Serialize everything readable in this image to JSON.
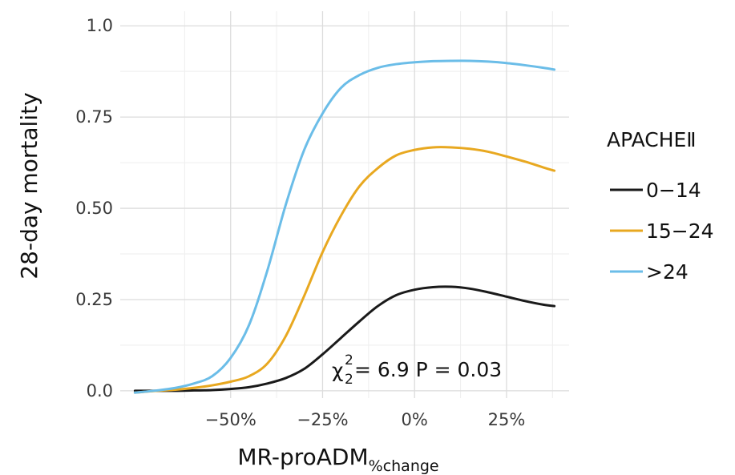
{
  "chart_data": {
    "type": "line",
    "xlabel_main": "MR-proADM",
    "xlabel_sub": "%change",
    "ylabel": "28-day mortality",
    "x_ticks": [
      {
        "value": -50,
        "label": "−50%"
      },
      {
        "value": -25,
        "label": "−25%"
      },
      {
        "value": 0,
        "label": "0%"
      },
      {
        "value": 25,
        "label": "25%"
      }
    ],
    "y_ticks": [
      {
        "value": 0.0,
        "label": "0.0"
      },
      {
        "value": 0.25,
        "label": "0.25"
      },
      {
        "value": 0.5,
        "label": "0.50"
      },
      {
        "value": 0.75,
        "label": "0.75"
      },
      {
        "value": 1.0,
        "label": "1.0"
      }
    ],
    "xlim": [
      -80,
      42
    ],
    "ylim": [
      -0.02,
      1.04
    ],
    "grid": true,
    "legend": {
      "title": "APACHEⅡ",
      "placement": "right"
    },
    "annotation": {
      "chi": "χ",
      "sup": "2",
      "sub": "2",
      "rest": "= 6.9   P = 0.03"
    },
    "series": [
      {
        "name": "0−14",
        "color": "#1a1a1a",
        "x": [
          -76,
          -70,
          -65,
          -60,
          -55,
          -50,
          -45,
          -40,
          -35,
          -30,
          -25,
          -20,
          -15,
          -10,
          -5,
          0,
          5,
          10,
          15,
          20,
          25,
          30,
          35,
          38
        ],
        "y": [
          0.0,
          0.0,
          0.0,
          0.001,
          0.002,
          0.005,
          0.01,
          0.02,
          0.035,
          0.06,
          0.1,
          0.145,
          0.19,
          0.232,
          0.262,
          0.277,
          0.284,
          0.285,
          0.28,
          0.27,
          0.258,
          0.246,
          0.236,
          0.232
        ]
      },
      {
        "name": "15−24",
        "color": "#e8a820",
        "x": [
          -76,
          -70,
          -65,
          -60,
          -55,
          -50,
          -45,
          -40,
          -35,
          -30,
          -25,
          -20,
          -15,
          -10,
          -5,
          0,
          5,
          10,
          15,
          20,
          25,
          30,
          35,
          38
        ],
        "y": [
          -0.005,
          0.0,
          0.003,
          0.008,
          0.015,
          0.025,
          0.04,
          0.075,
          0.15,
          0.26,
          0.38,
          0.48,
          0.56,
          0.61,
          0.645,
          0.66,
          0.667,
          0.667,
          0.663,
          0.655,
          0.642,
          0.628,
          0.612,
          0.603
        ]
      },
      {
        "name": ">24",
        "color": "#6bbde8",
        "x": [
          -76,
          -70,
          -65,
          -60,
          -55,
          -50,
          -45,
          -40,
          -35,
          -30,
          -25,
          -20,
          -15,
          -10,
          -5,
          0,
          5,
          10,
          15,
          20,
          25,
          30,
          35,
          38
        ],
        "y": [
          -0.005,
          0.001,
          0.008,
          0.02,
          0.04,
          0.09,
          0.18,
          0.33,
          0.51,
          0.66,
          0.76,
          0.83,
          0.865,
          0.885,
          0.895,
          0.9,
          0.903,
          0.904,
          0.904,
          0.902,
          0.898,
          0.892,
          0.885,
          0.88
        ]
      }
    ]
  }
}
